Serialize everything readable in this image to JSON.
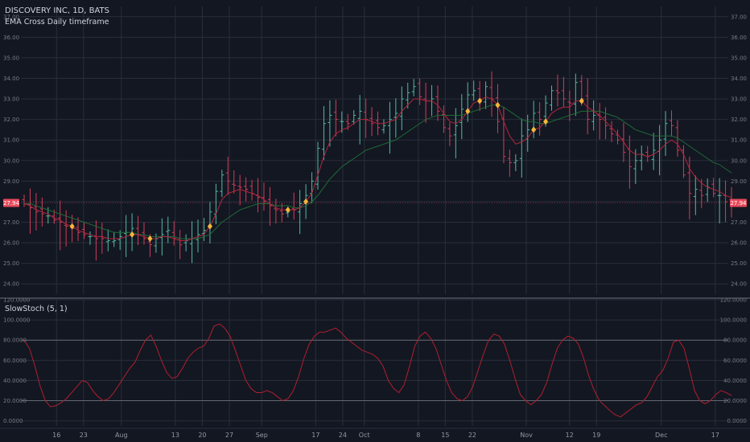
{
  "header": {
    "symbol_title": "DISCOVERY INC, 1D, BATS",
    "indicator_title": "EMA Cross Daily timeframe",
    "stoch_title": "SlowStoch (5, 1)"
  },
  "colors": {
    "background": "#131722",
    "grid": "#2a2e39",
    "divider": "#5d606b",
    "up_bar": "#53b9a3",
    "down_bar": "#d23c58",
    "ema_fast": "#b3263c",
    "ema_slow": "#1f6b35",
    "signal": "#f5b73b",
    "stoch_line": "#b01f2e",
    "stoch_levels": "#787b86",
    "price_tag": "#e7495b"
  },
  "price_tag": "27.94",
  "chart_data": [
    {
      "type": "ohlc",
      "title": "DISCOVERY INC, 1D, BATS",
      "subtitle": "EMA Cross Daily timeframe",
      "ylim": [
        23.5,
        37.5
      ],
      "y_ticks": [
        "24.00",
        "25.00",
        "26.00",
        "27.00",
        "28.00",
        "29.00",
        "30.00",
        "31.00",
        "32.00",
        "33.00",
        "34.00",
        "35.00",
        "36.00",
        "37.00"
      ],
      "x_ticks": [
        {
          "label": "16",
          "i": 6
        },
        {
          "label": "23",
          "i": 11
        },
        {
          "label": "Aug",
          "i": 18
        },
        {
          "label": "13",
          "i": 28
        },
        {
          "label": "20",
          "i": 33
        },
        {
          "label": "27",
          "i": 38
        },
        {
          "label": "Sep",
          "i": 44
        },
        {
          "label": "17",
          "i": 54
        },
        {
          "label": "24",
          "i": 59
        },
        {
          "label": "Oct",
          "i": 63
        },
        {
          "label": "8",
          "i": 73
        },
        {
          "label": "15",
          "i": 78
        },
        {
          "label": "22",
          "i": 83
        },
        {
          "label": "Nov",
          "i": 93
        },
        {
          "label": "12",
          "i": 101
        },
        {
          "label": "19",
          "i": 106
        },
        {
          "label": "Dec",
          "i": 118
        },
        {
          "label": "17",
          "i": 128
        }
      ],
      "close": [
        27.9,
        27.7,
        27.5,
        27.4,
        27.3,
        27.1,
        27.0,
        26.8,
        26.7,
        26.5,
        26.4,
        26.3,
        26.2,
        26.2,
        26.1,
        26.1,
        26.3,
        26.5,
        26.7,
        26.4,
        26.2,
        25.9,
        26.2,
        26.4,
        26.6,
        26.2,
        25.9,
        26.1,
        26.2,
        26.4,
        26.6,
        27.5,
        28.5,
        29.3,
        29.0,
        28.8,
        28.7,
        28.6,
        28.4,
        28.2,
        28.0,
        27.8,
        27.6,
        27.4,
        27.5,
        27.6,
        27.9,
        28.3,
        29.0,
        30.6,
        31.8,
        32.2,
        32.0,
        31.9,
        31.8,
        32.2,
        32.4,
        32.0,
        31.8,
        31.6,
        31.7,
        32.0,
        32.3,
        33.0,
        33.3,
        33.6,
        33.1,
        32.9,
        33.0,
        32.4,
        31.6,
        31.2,
        31.7,
        32.5,
        33.2,
        33.4,
        33.0,
        33.6,
        33.0,
        31.9,
        30.2,
        29.9,
        30.0,
        31.2,
        31.5,
        32.3,
        32.0,
        32.8,
        33.4,
        33.3,
        33.0,
        32.8,
        33.8,
        33.0,
        32.0,
        32.2,
        32.0,
        31.7,
        31.3,
        31.0,
        30.4,
        29.7,
        30.0,
        30.3,
        30.2,
        30.5,
        31.0,
        31.8,
        31.7,
        30.5,
        29.3,
        28.4,
        28.6,
        28.3,
        28.7,
        28.4,
        28.3,
        28.0,
        27.9
      ],
      "ema_fast": [
        27.9,
        27.8,
        27.6,
        27.5,
        27.4,
        27.2,
        27.1,
        26.9,
        26.8,
        26.6,
        26.5,
        26.4,
        26.3,
        26.3,
        26.2,
        26.2,
        26.2,
        26.3,
        26.4,
        26.4,
        26.3,
        26.2,
        26.2,
        26.3,
        26.3,
        26.2,
        26.1,
        26.1,
        26.2,
        26.3,
        26.4,
        26.8,
        27.4,
        28.1,
        28.4,
        28.5,
        28.6,
        28.5,
        28.4,
        28.3,
        28.1,
        27.9,
        27.7,
        27.6,
        27.6,
        27.6,
        27.7,
        28.0,
        28.4,
        29.3,
        30.2,
        30.9,
        31.3,
        31.5,
        31.6,
        31.8,
        32.0,
        32.0,
        31.9,
        31.8,
        31.8,
        31.9,
        32.0,
        32.4,
        32.7,
        33.0,
        33.0,
        32.9,
        32.9,
        32.7,
        32.3,
        31.9,
        31.8,
        32.0,
        32.4,
        32.8,
        32.9,
        33.1,
        33.0,
        32.7,
        31.9,
        31.2,
        30.8,
        30.9,
        31.1,
        31.5,
        31.6,
        31.9,
        32.3,
        32.5,
        32.6,
        32.6,
        32.9,
        32.9,
        32.6,
        32.4,
        32.2,
        31.9,
        31.6,
        31.3,
        30.9,
        30.5,
        30.3,
        30.3,
        30.2,
        30.3,
        30.5,
        30.8,
        31.0,
        30.8,
        30.3,
        29.6,
        29.2,
        28.9,
        28.7,
        28.6,
        28.5,
        28.3,
        28.2
      ],
      "ema_slow": [
        27.9,
        27.9,
        27.8,
        27.7,
        27.6,
        27.5,
        27.4,
        27.3,
        27.2,
        27.1,
        27.0,
        26.9,
        26.8,
        26.7,
        26.6,
        26.5,
        26.5,
        26.5,
        26.5,
        26.4,
        26.4,
        26.3,
        26.3,
        26.3,
        26.3,
        26.3,
        26.2,
        26.2,
        26.2,
        26.2,
        26.3,
        26.4,
        26.7,
        27.0,
        27.2,
        27.4,
        27.6,
        27.7,
        27.8,
        27.9,
        27.9,
        27.9,
        27.8,
        27.8,
        27.8,
        27.7,
        27.7,
        27.8,
        28.0,
        28.3,
        28.7,
        29.1,
        29.4,
        29.7,
        29.9,
        30.1,
        30.3,
        30.5,
        30.6,
        30.7,
        30.8,
        30.9,
        31.0,
        31.2,
        31.4,
        31.6,
        31.8,
        32.0,
        32.1,
        32.2,
        32.2,
        32.2,
        32.2,
        32.2,
        32.3,
        32.4,
        32.5,
        32.6,
        32.7,
        32.7,
        32.6,
        32.4,
        32.2,
        32.0,
        31.9,
        31.9,
        31.8,
        31.8,
        31.9,
        32.0,
        32.1,
        32.2,
        32.3,
        32.4,
        32.4,
        32.4,
        32.4,
        32.3,
        32.2,
        32.1,
        31.9,
        31.7,
        31.5,
        31.4,
        31.3,
        31.2,
        31.2,
        31.2,
        31.2,
        31.1,
        30.9,
        30.7,
        30.5,
        30.3,
        30.1,
        29.9,
        29.8,
        29.6,
        29.4
      ],
      "signals": [
        8,
        18,
        21,
        31,
        44,
        47,
        74,
        76,
        79,
        85,
        87,
        93
      ]
    },
    {
      "type": "line",
      "title": "SlowStoch (5, 1)",
      "ylim": [
        -5,
        120
      ],
      "y_ticks": [
        "0.0000",
        "20.0000",
        "40.0000",
        "60.0000",
        "80.0000",
        "100.0000",
        "120.0000"
      ],
      "levels": [
        20,
        80
      ],
      "values": [
        80,
        72,
        55,
        35,
        20,
        14,
        15,
        18,
        22,
        28,
        34,
        40,
        38,
        30,
        24,
        20,
        22,
        28,
        36,
        44,
        52,
        58,
        70,
        80,
        85,
        74,
        60,
        48,
        42,
        44,
        52,
        62,
        68,
        72,
        74,
        82,
        94,
        96,
        92,
        84,
        70,
        55,
        40,
        32,
        28,
        28,
        30,
        28,
        24,
        20,
        22,
        30,
        44,
        62,
        76,
        84,
        88,
        88,
        90,
        92,
        88,
        82,
        78,
        74,
        70,
        68,
        66,
        62,
        54,
        40,
        32,
        28,
        36,
        54,
        74,
        84,
        88,
        82,
        72,
        56,
        40,
        28,
        22,
        20,
        24,
        34,
        50,
        66,
        80,
        86,
        84,
        76,
        60,
        42,
        26,
        20,
        16,
        20,
        26,
        38,
        56,
        72,
        80,
        84,
        82,
        76,
        62,
        44,
        30,
        20,
        15,
        10,
        6,
        4,
        8,
        12,
        16,
        18,
        24,
        34,
        44,
        50,
        62,
        78,
        80,
        72,
        52,
        30,
        20,
        17,
        20,
        26,
        30,
        28,
        25
      ]
    }
  ]
}
